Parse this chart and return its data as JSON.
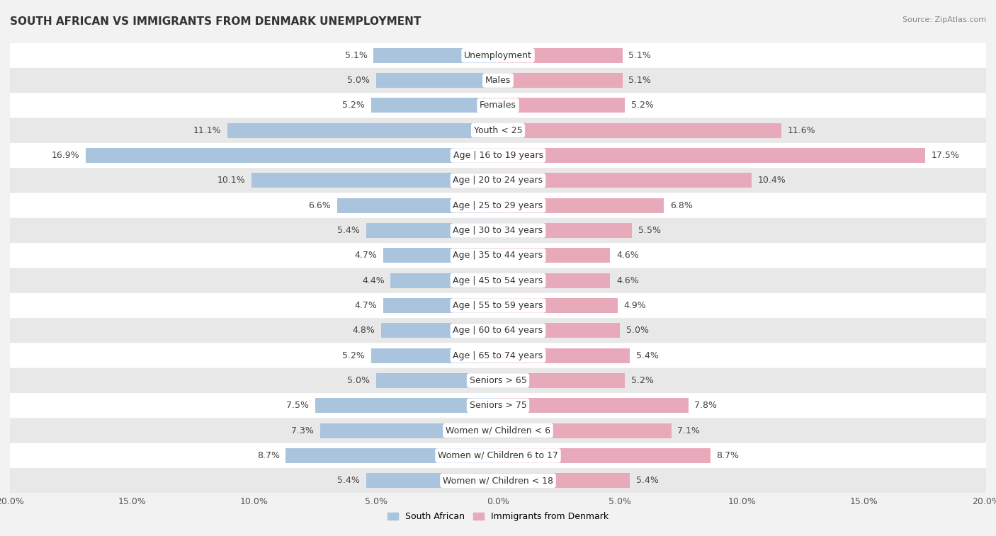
{
  "title": "South African vs Immigrants from Denmark Unemployment",
  "source": "Source: ZipAtlas.com",
  "categories": [
    "Unemployment",
    "Males",
    "Females",
    "Youth < 25",
    "Age | 16 to 19 years",
    "Age | 20 to 24 years",
    "Age | 25 to 29 years",
    "Age | 30 to 34 years",
    "Age | 35 to 44 years",
    "Age | 45 to 54 years",
    "Age | 55 to 59 years",
    "Age | 60 to 64 years",
    "Age | 65 to 74 years",
    "Seniors > 65",
    "Seniors > 75",
    "Women w/ Children < 6",
    "Women w/ Children 6 to 17",
    "Women w/ Children < 18"
  ],
  "south_african": [
    5.1,
    5.0,
    5.2,
    11.1,
    16.9,
    10.1,
    6.6,
    5.4,
    4.7,
    4.4,
    4.7,
    4.8,
    5.2,
    5.0,
    7.5,
    7.3,
    8.7,
    5.4
  ],
  "immigrants_denmark": [
    5.1,
    5.1,
    5.2,
    11.6,
    17.5,
    10.4,
    6.8,
    5.5,
    4.6,
    4.6,
    4.9,
    5.0,
    5.4,
    5.2,
    7.8,
    7.1,
    8.7,
    5.4
  ],
  "south_african_color": "#aac4de",
  "immigrants_color": "#e8aabb",
  "row_colors": [
    "#ffffff",
    "#e8e8e8"
  ],
  "xlim": 20.0,
  "bar_height": 0.6,
  "label_fontsize": 9,
  "cat_fontsize": 9,
  "legend_label_sa": "South African",
  "legend_label_dk": "Immigrants from Denmark",
  "title_fontsize": 11,
  "source_fontsize": 8
}
